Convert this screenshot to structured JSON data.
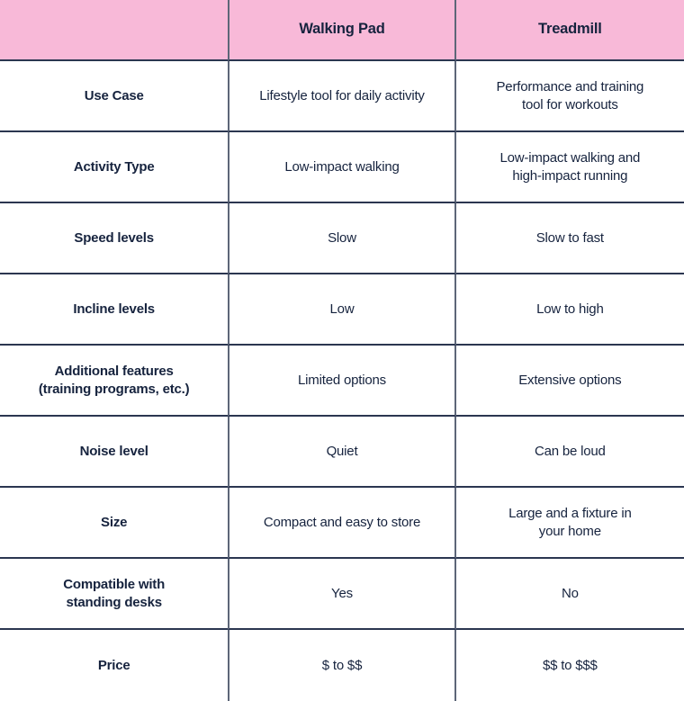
{
  "table": {
    "columns": [
      "",
      "Walking Pad",
      "Treadmill"
    ],
    "rows": [
      {
        "label": "Use Case",
        "walking_pad": "Lifestyle tool for daily activity",
        "treadmill": "Performance and training\ntool for workouts"
      },
      {
        "label": "Activity Type",
        "walking_pad": "Low-impact walking",
        "treadmill": "Low-impact walking and\nhigh-impact running"
      },
      {
        "label": "Speed levels",
        "walking_pad": "Slow",
        "treadmill": "Slow to fast"
      },
      {
        "label": "Incline levels",
        "walking_pad": "Low",
        "treadmill": "Low to high"
      },
      {
        "label": "Additional features\n(training programs, etc.)",
        "walking_pad": "Limited options",
        "treadmill": "Extensive options"
      },
      {
        "label": "Noise level",
        "walking_pad": "Quiet",
        "treadmill": "Can be loud"
      },
      {
        "label": "Size",
        "walking_pad": "Compact and easy to store",
        "treadmill": "Large and a fixture in\nyour home"
      },
      {
        "label": "Compatible with\nstanding desks",
        "walking_pad": "Yes",
        "treadmill": "No"
      },
      {
        "label": "Price",
        "walking_pad": "$ to $$",
        "treadmill": "$$ to $$$"
      }
    ]
  },
  "colors": {
    "header_bg": "#f8b9d8",
    "text": "#16233e",
    "row_border": "#2b3650",
    "column_border": "#5d6678"
  }
}
